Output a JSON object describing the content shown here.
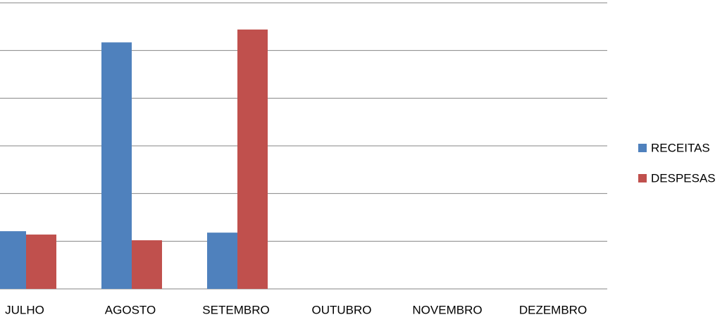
{
  "chart_data": {
    "type": "bar",
    "categories": [
      "JULHO",
      "AGOSTO",
      "SETEMBRO",
      "OUTUBRO",
      "NOVEMBRO",
      "DEZEMBRO"
    ],
    "series": [
      {
        "name": "RECEITAS",
        "color": "#4f81bd",
        "values": [
          1.21,
          5.17,
          1.18,
          null,
          null,
          null
        ]
      },
      {
        "name": "DESPESAS",
        "color": "#c0504d",
        "values": [
          1.14,
          1.02,
          5.44,
          null,
          null,
          null
        ]
      }
    ],
    "ylim": [
      0,
      6
    ],
    "yticks": [
      0,
      1,
      2,
      3,
      4,
      5,
      6
    ],
    "grid": true,
    "legend": "right"
  }
}
